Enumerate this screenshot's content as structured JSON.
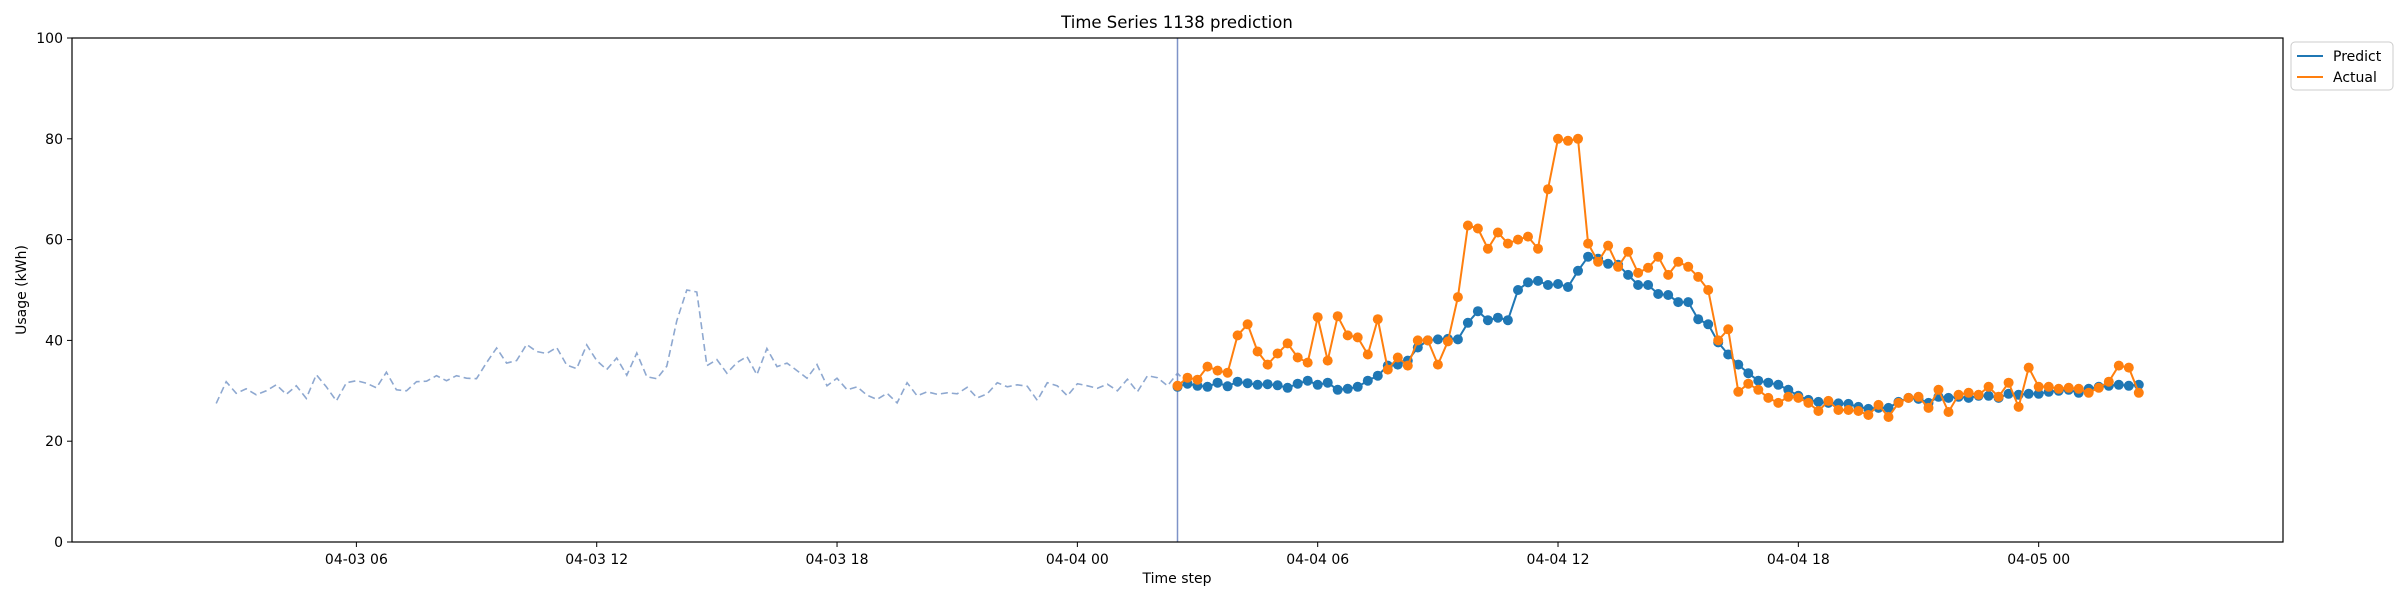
{
  "chart_data": {
    "type": "line",
    "title": "Time Series 1138 prediction",
    "xlabel": "Time step",
    "ylabel": "Usage (kWh)",
    "ylim": [
      0,
      100
    ],
    "xlim": [
      "04-02 22:54",
      "04-05 06:06"
    ],
    "yticks": [
      0,
      20,
      40,
      60,
      80,
      100
    ],
    "xticks": [
      "04-03 06",
      "04-03 12",
      "04-03 18",
      "04-04 00",
      "04-04 06",
      "04-04 12",
      "04-04 18",
      "04-05 00"
    ],
    "grid": false,
    "legend": {
      "placement": "upper-right-outside",
      "entries": [
        "Predict",
        "Actual"
      ]
    },
    "forecast_start": "04-04 02:30",
    "colors": {
      "history": "#8ea8d0",
      "predict": "#1f77b4",
      "actual": "#ff7f0e",
      "divider": "#7f93c8"
    },
    "step_minutes": 15,
    "series": [
      {
        "name": "",
        "role": "history",
        "style": "dashed",
        "start": "04-03 02:30",
        "values": [
          27.5,
          31.8,
          29.5,
          30.4,
          29.2,
          30.0,
          31.2,
          29.3,
          31.0,
          28.5,
          33.2,
          30.8,
          28.0,
          31.6,
          32.0,
          31.5,
          30.6,
          33.7,
          30.2,
          30.0,
          31.8,
          31.9,
          33.0,
          32.0,
          33.0,
          32.5,
          32.4,
          35.6,
          38.5,
          35.5,
          36.0,
          39.2,
          37.8,
          37.4,
          38.6,
          35.1,
          34.4,
          39.1,
          36.0,
          34.2,
          36.5,
          33.1,
          37.5,
          32.8,
          32.4,
          34.9,
          43.9,
          50.0,
          49.6,
          35.0,
          36.2,
          33.5,
          35.6,
          36.8,
          33.2,
          38.4,
          34.8,
          35.5,
          34.0,
          32.5,
          35.2,
          31.0,
          32.5,
          30.2,
          30.8,
          29.1,
          28.3,
          29.5,
          27.6,
          31.6,
          29.0,
          29.8,
          29.3,
          29.6,
          29.4,
          30.7,
          28.6,
          29.4,
          31.6,
          30.8,
          31.2,
          30.9,
          28.1,
          31.6,
          31.0,
          29.0,
          31.4,
          31.0,
          30.5,
          31.3,
          30.0,
          32.3,
          29.8,
          33.0,
          32.6,
          31.0,
          33.5,
          31.4
        ]
      },
      {
        "name": "Predict",
        "role": "predict",
        "style": "solid+markers",
        "start": "04-04 02:30",
        "values": [
          30.8,
          31.4,
          31.0,
          30.8,
          31.6,
          30.9,
          31.8,
          31.5,
          31.2,
          31.3,
          31.1,
          30.6,
          31.4,
          32.0,
          31.2,
          31.6,
          30.2,
          30.4,
          30.8,
          32.0,
          33.0,
          35.0,
          35.2,
          36.0,
          38.6,
          40.0,
          40.2,
          40.3,
          40.2,
          43.5,
          45.8,
          44.0,
          44.5,
          44.0,
          50.0,
          51.5,
          51.8,
          51.0,
          51.2,
          50.6,
          53.8,
          56.6,
          56.2,
          55.2,
          55.0,
          53.0,
          51.0,
          51.0,
          49.2,
          49.0,
          47.6,
          47.6,
          44.2,
          43.2,
          39.6,
          37.2,
          35.2,
          33.5,
          32.0,
          31.6,
          31.2,
          30.2,
          29.0,
          28.2,
          27.8,
          27.6,
          27.5,
          27.4,
          26.8,
          26.4,
          26.6,
          26.6,
          27.8,
          28.6,
          28.4,
          27.6,
          28.8,
          28.6,
          28.8,
          28.6,
          29.0,
          29.0,
          28.6,
          29.4,
          29.2,
          29.4,
          29.4,
          29.8,
          30.0,
          30.2,
          29.6,
          30.4,
          30.8,
          31.0,
          31.2,
          31.0,
          31.2
        ]
      },
      {
        "name": "Actual",
        "role": "actual",
        "style": "solid+markers",
        "start": "04-04 02:30",
        "values": [
          31.0,
          32.6,
          32.2,
          34.8,
          34.0,
          33.6,
          41.0,
          43.2,
          37.8,
          35.2,
          37.4,
          39.4,
          36.6,
          35.6,
          44.6,
          36.0,
          44.8,
          41.0,
          40.6,
          37.2,
          44.2,
          34.2,
          36.6,
          35.0,
          40.0,
          40.0,
          35.2,
          39.8,
          48.6,
          62.8,
          62.2,
          58.2,
          61.4,
          59.2,
          60.0,
          60.6,
          58.2,
          70.0,
          80.0,
          79.6,
          80.0,
          59.2,
          55.6,
          58.8,
          54.6,
          57.6,
          53.4,
          54.4,
          56.6,
          53.0,
          55.6,
          54.6,
          52.6,
          50.0,
          40.0,
          42.2,
          29.8,
          31.4,
          30.2,
          28.6,
          27.6,
          28.8,
          28.6,
          27.6,
          26.0,
          28.0,
          26.2,
          26.2,
          26.0,
          25.2,
          27.2,
          24.8,
          27.6,
          28.6,
          28.8,
          26.6,
          30.2,
          25.8,
          29.2,
          29.6,
          29.2,
          30.8,
          28.8,
          31.6,
          26.8,
          34.6,
          30.8,
          30.8,
          30.4,
          30.6,
          30.4,
          29.6,
          30.6,
          31.8,
          35.0,
          34.6,
          29.6
        ]
      }
    ]
  }
}
